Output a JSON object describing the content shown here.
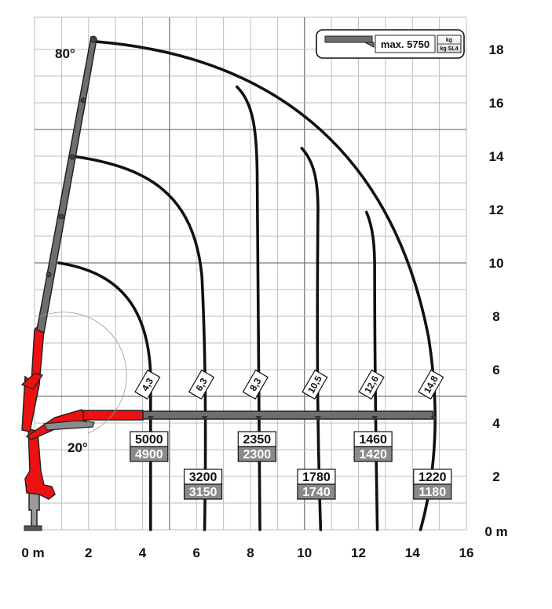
{
  "x_axis": {
    "ticks": [
      "0 m",
      "2",
      "4",
      "6",
      "8",
      "10",
      "12",
      "14",
      "16"
    ],
    "min": 0,
    "max": 16
  },
  "y_axis": {
    "ticks": [
      "0 m",
      "2",
      "4",
      "6",
      "8",
      "10",
      "12",
      "14",
      "16",
      "18"
    ],
    "min": 0,
    "max": 18.5
  },
  "angles": {
    "max_label": "80°",
    "min_label": "20°"
  },
  "legend": {
    "text": "max. 5750",
    "unit_top": "kg",
    "unit_bottom": "kg SL4"
  },
  "reach_markers": [
    {
      "label": "4,3",
      "x": 4.3
    },
    {
      "label": "6,3",
      "x": 6.3
    },
    {
      "label": "8,3",
      "x": 8.3
    },
    {
      "label": "10,5",
      "x": 10.5
    },
    {
      "label": "12,6",
      "x": 12.6
    },
    {
      "label": "14,8",
      "x": 14.8
    }
  ],
  "loads": [
    {
      "x": 4.3,
      "top": "5000",
      "bottom": "4900",
      "row": "upper"
    },
    {
      "x": 6.3,
      "top": "3200",
      "bottom": "3150",
      "row": "lower"
    },
    {
      "x": 8.3,
      "top": "2350",
      "bottom": "2300",
      "row": "upper"
    },
    {
      "x": 10.5,
      "top": "1780",
      "bottom": "1740",
      "row": "lower"
    },
    {
      "x": 12.6,
      "top": "1460",
      "bottom": "1420",
      "row": "upper"
    },
    {
      "x": 14.8,
      "top": "1220",
      "bottom": "1180",
      "row": "lower"
    }
  ],
  "colors": {
    "crane_red": "#ee1111",
    "boom_grey": "#6e6e6e",
    "curve": "#111111",
    "grid": "#bdbdbd",
    "grid_major": "#777777"
  }
}
